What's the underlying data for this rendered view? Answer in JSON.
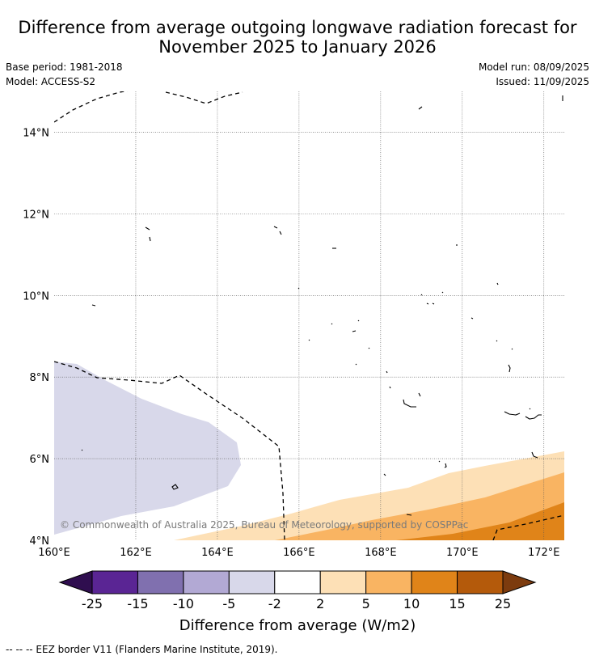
{
  "title": {
    "line1": "Difference from average outgoing longwave radiation forecast for",
    "line2": "November 2025 to January 2026"
  },
  "meta_left": {
    "base_period": "Base period: 1981-2018",
    "model": "Model: ACCESS-S2"
  },
  "meta_right": {
    "model_run": "Model run: 08/09/2025",
    "issued": "Issued: 11/09/2025"
  },
  "map": {
    "lon_range": [
      160,
      172.5
    ],
    "lat_range": [
      4,
      15
    ],
    "lon_ticks": [
      "160°E",
      "162°E",
      "164°E",
      "166°E",
      "168°E",
      "170°E",
      "172°E"
    ],
    "lat_ticks": [
      "4°N",
      "6°N",
      "8°N",
      "10°N",
      "12°N",
      "14°N"
    ],
    "copyright": "© Commonwealth of Australia 2025, Bureau of Meteorology, supported by COSPPac",
    "anomaly_fill_colors": {
      "-5_to_-2": "#d8d8ea",
      "2_to_5": "#fde0b6",
      "5_to_10": "#f9b462",
      "10_to_15": "#e08419"
    }
  },
  "colorbar": {
    "boundaries": [
      "-25",
      "-15",
      "-10",
      "-5",
      "-2",
      "2",
      "5",
      "10",
      "15",
      "25"
    ],
    "colors": [
      "#5a2594",
      "#8070af",
      "#b2a9d4",
      "#d8d8ea",
      "#ffffff",
      "#fde0b6",
      "#f9b462",
      "#e08419",
      "#b45a0b"
    ],
    "low_extend_color": "#2f0e4f",
    "high_extend_color": "#7c3b0e",
    "label": "Difference from average (W/m2)"
  },
  "footer": {
    "text": "--  --  -- EEZ border V11 (Flanders Marine Institute, 2019)."
  }
}
